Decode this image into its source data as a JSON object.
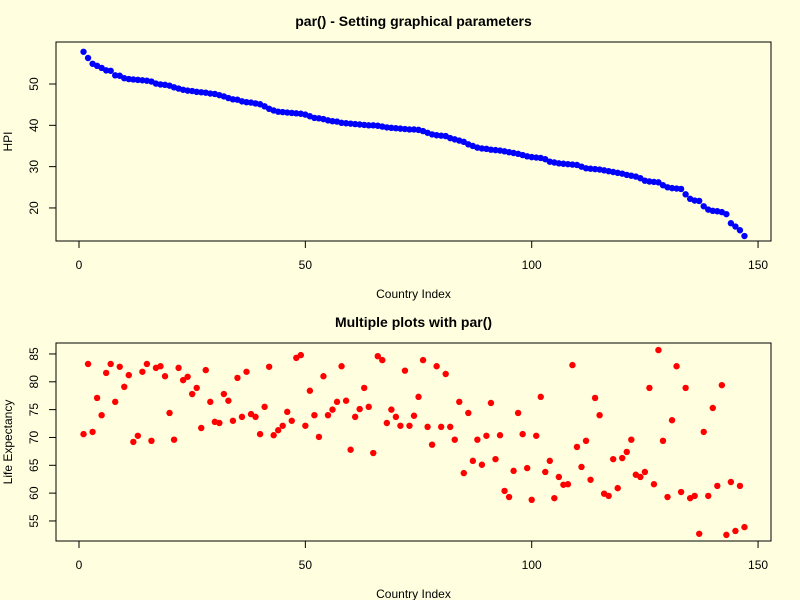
{
  "chart_data": [
    {
      "type": "scatter",
      "title": "par() - Setting graphical parameters",
      "x_label": "Country Index",
      "y_label": "HPI",
      "xlim": [
        -5.08,
        152.86
      ],
      "ylim": [
        12.0,
        60.17
      ],
      "xticks": [
        0,
        50,
        100,
        150
      ],
      "yticks": [
        20,
        30,
        40,
        50
      ],
      "series": [
        {
          "color": "#0000ff",
          "x": [
            1,
            2,
            3,
            4,
            5,
            6,
            7,
            8,
            9,
            10,
            11,
            12,
            13,
            14,
            15,
            16,
            17,
            18,
            19,
            20,
            21,
            22,
            23,
            24,
            25,
            26,
            27,
            28,
            29,
            30,
            31,
            32,
            33,
            34,
            35,
            36,
            37,
            38,
            39,
            40,
            41,
            42,
            43,
            44,
            45,
            46,
            47,
            48,
            49,
            50,
            51,
            52,
            53,
            54,
            55,
            56,
            57,
            58,
            59,
            60,
            61,
            62,
            63,
            64,
            65,
            66,
            67,
            68,
            69,
            70,
            71,
            72,
            73,
            74,
            75,
            76,
            77,
            78,
            79,
            80,
            81,
            82,
            83,
            84,
            85,
            86,
            87,
            88,
            89,
            90,
            91,
            92,
            93,
            94,
            95,
            96,
            97,
            98,
            99,
            100,
            101,
            102,
            103,
            104,
            105,
            106,
            107,
            108,
            109,
            110,
            111,
            112,
            113,
            114,
            115,
            116,
            117,
            118,
            119,
            120,
            121,
            122,
            123,
            124,
            125,
            126,
            127,
            128,
            129,
            130,
            131,
            132,
            133,
            134,
            135,
            136,
            137,
            138,
            139,
            140,
            141,
            142,
            143,
            144,
            145,
            146,
            147
          ],
          "values": [
            57.8,
            56.3,
            54.9,
            54.4,
            53.9,
            53.3,
            53.2,
            52.1,
            52.0,
            51.4,
            51.2,
            51.1,
            51.0,
            50.9,
            50.8,
            50.6,
            50.1,
            49.9,
            49.8,
            49.6,
            49.2,
            48.9,
            48.6,
            48.4,
            48.3,
            48.1,
            48.0,
            47.9,
            47.7,
            47.6,
            47.3,
            47.0,
            46.6,
            46.3,
            46.2,
            45.8,
            45.6,
            45.5,
            45.3,
            45.1,
            44.6,
            44.0,
            43.6,
            43.3,
            43.2,
            43.1,
            43.0,
            42.9,
            42.8,
            42.6,
            42.2,
            41.8,
            41.7,
            41.5,
            41.2,
            41.0,
            40.9,
            40.6,
            40.5,
            40.4,
            40.3,
            40.2,
            40.1,
            40.0,
            40.0,
            39.9,
            39.7,
            39.5,
            39.4,
            39.3,
            39.2,
            39.1,
            39.0,
            39.0,
            38.9,
            38.6,
            38.2,
            37.8,
            37.6,
            37.5,
            37.4,
            36.9,
            36.6,
            36.3,
            36.0,
            35.4,
            35.0,
            34.6,
            34.4,
            34.3,
            34.1,
            34.0,
            33.9,
            33.7,
            33.5,
            33.3,
            33.1,
            32.8,
            32.5,
            32.3,
            32.2,
            32.1,
            31.8,
            31.2,
            31.0,
            30.8,
            30.7,
            30.6,
            30.5,
            30.4,
            30.0,
            29.6,
            29.5,
            29.4,
            29.3,
            29.1,
            28.9,
            28.7,
            28.5,
            28.3,
            28.0,
            27.8,
            27.6,
            27.2,
            26.6,
            26.4,
            26.3,
            26.2,
            25.5,
            25.0,
            24.8,
            24.7,
            24.6,
            23.3,
            22.2,
            21.8,
            21.7,
            20.4,
            19.6,
            19.3,
            19.2,
            19.0,
            18.5,
            16.3,
            15.5,
            14.6,
            13.2
          ]
        }
      ]
    },
    {
      "type": "scatter",
      "title": "Multiple plots with par()",
      "x_label": "Country Index",
      "y_label": "Life Expectancy",
      "xlim": [
        -5.08,
        152.86
      ],
      "ylim": [
        51.4,
        86.97
      ],
      "xticks": [
        0,
        50,
        100,
        150
      ],
      "yticks": [
        55,
        60,
        65,
        70,
        75,
        80,
        85
      ],
      "series": [
        {
          "color": "#ff0000",
          "x": [
            1,
            2,
            3,
            4,
            5,
            6,
            7,
            8,
            9,
            10,
            11,
            12,
            13,
            14,
            15,
            16,
            17,
            18,
            19,
            20,
            21,
            22,
            23,
            24,
            25,
            26,
            27,
            28,
            29,
            30,
            31,
            32,
            33,
            34,
            35,
            36,
            37,
            38,
            39,
            40,
            41,
            42,
            43,
            44,
            45,
            46,
            47,
            48,
            49,
            50,
            51,
            52,
            53,
            54,
            55,
            56,
            57,
            58,
            59,
            60,
            61,
            62,
            63,
            64,
            65,
            66,
            67,
            68,
            69,
            70,
            71,
            72,
            73,
            74,
            75,
            76,
            77,
            78,
            79,
            80,
            81,
            82,
            83,
            84,
            85,
            86,
            87,
            88,
            89,
            90,
            91,
            92,
            93,
            94,
            95,
            96,
            97,
            98,
            99,
            100,
            101,
            102,
            103,
            104,
            105,
            106,
            107,
            108,
            109,
            110,
            111,
            112,
            113,
            114,
            115,
            116,
            117,
            118,
            119,
            120,
            121,
            122,
            123,
            124,
            125,
            126,
            127,
            128,
            129,
            130,
            131,
            132,
            133,
            134,
            135,
            136,
            137,
            138,
            139,
            140,
            141,
            142,
            143,
            144,
            145,
            146,
            147
          ],
          "values": [
            70.6,
            83.2,
            71.0,
            77.1,
            74.0,
            81.6,
            83.2,
            76.4,
            82.7,
            79.1,
            81.2,
            69.2,
            70.3,
            81.8,
            83.2,
            69.4,
            82.5,
            82.8,
            81.0,
            74.4,
            69.6,
            82.5,
            80.3,
            80.9,
            77.8,
            78.9,
            71.7,
            82.1,
            76.4,
            72.8,
            72.6,
            77.8,
            76.6,
            73.0,
            80.7,
            73.7,
            81.8,
            74.2,
            73.7,
            70.6,
            75.5,
            82.7,
            70.4,
            71.3,
            72.1,
            74.6,
            73.0,
            84.3,
            84.8,
            72.1,
            78.4,
            74.0,
            70.1,
            81.0,
            74.0,
            75.0,
            76.4,
            82.8,
            76.6,
            67.8,
            73.7,
            75.1,
            78.9,
            75.5,
            67.2,
            84.6,
            83.9,
            72.6,
            75.0,
            73.7,
            72.1,
            82.0,
            72.1,
            73.9,
            77.3,
            83.9,
            71.9,
            68.7,
            82.8,
            71.9,
            81.4,
            71.9,
            69.6,
            76.4,
            63.6,
            74.4,
            65.8,
            69.6,
            65.1,
            70.3,
            76.2,
            66.1,
            70.4,
            60.4,
            59.3,
            64.0,
            74.4,
            70.6,
            64.5,
            58.8,
            70.3,
            77.3,
            63.8,
            65.8,
            59.1,
            62.9,
            61.5,
            61.6,
            83.0,
            68.3,
            64.7,
            69.4,
            62.4,
            77.1,
            74.0,
            59.9,
            59.5,
            66.1,
            60.9,
            66.3,
            67.4,
            69.6,
            63.3,
            62.9,
            63.8,
            78.9,
            61.6,
            85.7,
            69.4,
            59.3,
            73.1,
            82.8,
            60.2,
            78.9,
            59.1,
            59.5,
            52.7,
            71.0,
            59.5,
            75.3,
            61.3,
            79.4,
            52.5,
            62.0,
            53.2,
            61.3,
            53.9
          ]
        }
      ]
    }
  ]
}
